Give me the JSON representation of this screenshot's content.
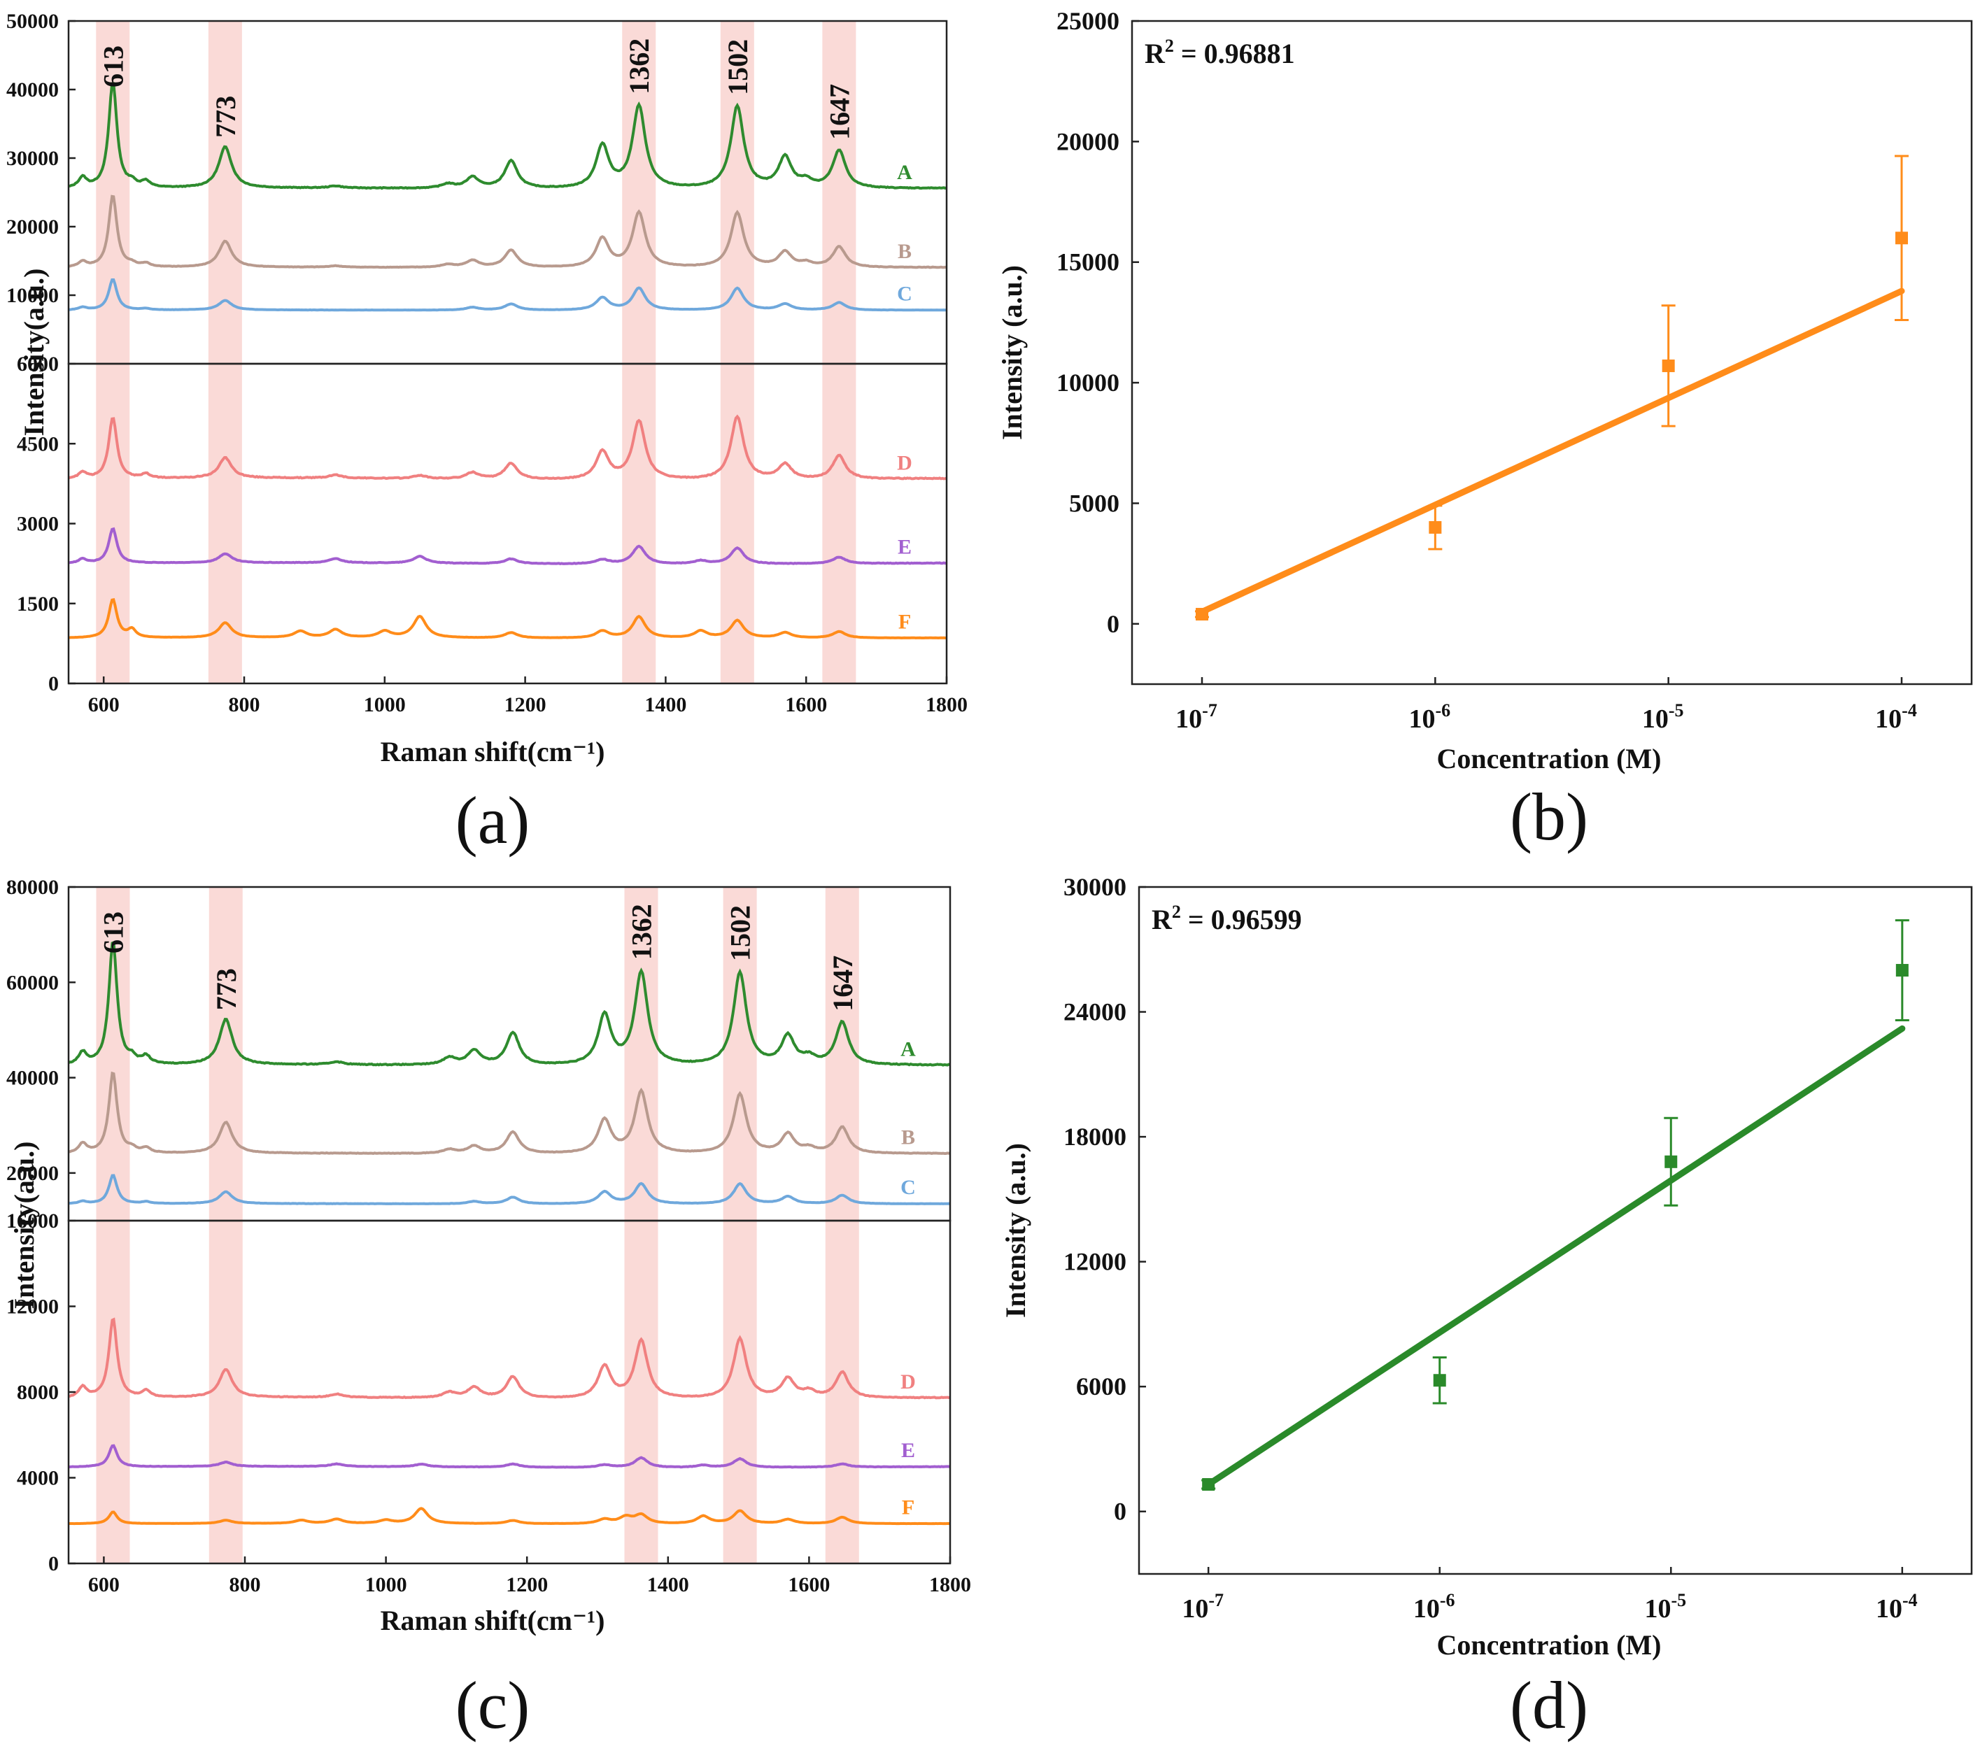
{
  "colors": {
    "A": "#2e8b2e",
    "B": "#b89a8e",
    "C": "#6fa8dc",
    "D": "#f08080",
    "E": "#a25fd0",
    "F": "#ff8c1a",
    "band": "#f9d4d0",
    "fit_b": "#ff8c1a",
    "fit_d": "#2a8a2a"
  },
  "chart_data": [
    {
      "panel": "(a)",
      "type": "line",
      "xlabel": "Raman shift(cm⁻¹)",
      "ylabel": "Intensity(a.u.)",
      "xlim": [
        550,
        1800
      ],
      "xticks": [
        600,
        800,
        1000,
        1200,
        1400,
        1600,
        1800
      ],
      "upper": {
        "ylim": [
          0,
          50000
        ],
        "yticks": [
          10000,
          20000,
          30000,
          40000,
          50000
        ]
      },
      "lower": {
        "ylim": [
          0,
          6000
        ],
        "yticks": [
          0,
          1500,
          3000,
          4500,
          6000
        ]
      },
      "bands": [
        613,
        773,
        1362,
        1502,
        1647
      ],
      "band_labels": [
        "613",
        "773",
        "1362",
        "1502",
        "1647"
      ],
      "series": [
        {
          "name": "A",
          "pane": "upper",
          "base": 25500,
          "peaks": [
            [
              570,
              1500
            ],
            [
              613,
              15500
            ],
            [
              640,
              700
            ],
            [
              660,
              900
            ],
            [
              773,
              6000
            ],
            [
              930,
              300
            ],
            [
              1090,
              600
            ],
            [
              1125,
              1600
            ],
            [
              1180,
              4000
            ],
            [
              1310,
              6200
            ],
            [
              1362,
              12000
            ],
            [
              1502,
              12000
            ],
            [
              1570,
              4500
            ],
            [
              1600,
              1000
            ],
            [
              1647,
              5500
            ]
          ]
        },
        {
          "name": "B",
          "pane": "upper",
          "base": 14000,
          "peaks": [
            [
              570,
              800
            ],
            [
              613,
              10500
            ],
            [
              640,
              400
            ],
            [
              660,
              500
            ],
            [
              773,
              3800
            ],
            [
              930,
              200
            ],
            [
              1090,
              400
            ],
            [
              1125,
              1000
            ],
            [
              1180,
              2500
            ],
            [
              1310,
              4200
            ],
            [
              1362,
              8000
            ],
            [
              1502,
              8000
            ],
            [
              1570,
              2200
            ],
            [
              1600,
              600
            ],
            [
              1647,
              3000
            ]
          ]
        },
        {
          "name": "C",
          "pane": "upper",
          "base": 7800,
          "peaks": [
            [
              570,
              400
            ],
            [
              613,
              4500
            ],
            [
              660,
              200
            ],
            [
              773,
              1400
            ],
            [
              1125,
              400
            ],
            [
              1180,
              900
            ],
            [
              1310,
              1800
            ],
            [
              1362,
              3200
            ],
            [
              1502,
              3200
            ],
            [
              1570,
              900
            ],
            [
              1647,
              1100
            ]
          ]
        },
        {
          "name": "D",
          "pane": "lower",
          "base": 3830,
          "peaks": [
            [
              570,
              120
            ],
            [
              613,
              1150
            ],
            [
              660,
              80
            ],
            [
              773,
              380
            ],
            [
              930,
              60
            ],
            [
              1050,
              60
            ],
            [
              1125,
              120
            ],
            [
              1180,
              300
            ],
            [
              1310,
              520
            ],
            [
              1362,
              1100
            ],
            [
              1502,
              1180
            ],
            [
              1570,
              280
            ],
            [
              1647,
              440
            ]
          ]
        },
        {
          "name": "E",
          "pane": "lower",
          "base": 2250,
          "peaks": [
            [
              570,
              80
            ],
            [
              613,
              650
            ],
            [
              773,
              170
            ],
            [
              930,
              80
            ],
            [
              1050,
              130
            ],
            [
              1180,
              90
            ],
            [
              1310,
              80
            ],
            [
              1362,
              330
            ],
            [
              1450,
              60
            ],
            [
              1502,
              300
            ],
            [
              1647,
              120
            ]
          ]
        },
        {
          "name": "F",
          "pane": "lower",
          "base": 850,
          "peaks": [
            [
              613,
              720
            ],
            [
              640,
              150
            ],
            [
              773,
              280
            ],
            [
              880,
              120
            ],
            [
              930,
              150
            ],
            [
              1000,
              120
            ],
            [
              1050,
              400
            ],
            [
              1180,
              100
            ],
            [
              1310,
              130
            ],
            [
              1362,
              400
            ],
            [
              1450,
              130
            ],
            [
              1502,
              330
            ],
            [
              1570,
              100
            ],
            [
              1647,
              120
            ]
          ]
        }
      ]
    },
    {
      "panel": "(b)",
      "type": "scatter",
      "xlabel": "Concentration (M)",
      "ylabel": "Intensity (a.u.)",
      "ylim": [
        -2500,
        25000
      ],
      "yticks": [
        0,
        5000,
        10000,
        15000,
        20000,
        25000
      ],
      "xlim_log": [
        -7.3,
        -3.7
      ],
      "xticks_exp": [
        -7,
        -6,
        -5,
        -4
      ],
      "xtick_base": "10",
      "r2_label": "R",
      "r2_sup": "2",
      "r2_value": "= 0.96881",
      "points": [
        {
          "x_exp": -7,
          "y": 400,
          "err": 120
        },
        {
          "x_exp": -6,
          "y": 4000,
          "err": 900
        },
        {
          "x_exp": -5,
          "y": 10700,
          "err": 2500
        },
        {
          "x_exp": -4,
          "y": 16000,
          "err": 3400
        }
      ],
      "fit": {
        "x_exp": [
          -7,
          -4
        ],
        "y": [
          500,
          13800
        ]
      }
    },
    {
      "panel": "(c)",
      "type": "line",
      "xlabel": "Raman shift(cm⁻¹)",
      "ylabel": "Intensity(a.u.)",
      "xlim": [
        550,
        1800
      ],
      "xticks": [
        600,
        800,
        1000,
        1200,
        1400,
        1600,
        1800
      ],
      "upper": {
        "ylim": [
          10000,
          80000
        ],
        "yticks": [
          20000,
          40000,
          60000,
          80000
        ]
      },
      "lower": {
        "ylim": [
          0,
          16000
        ],
        "yticks": [
          0,
          4000,
          8000,
          12000,
          16000
        ]
      },
      "bands": [
        613,
        773,
        1362,
        1502,
        1647
      ],
      "band_labels": [
        "613",
        "773",
        "1362",
        "1502",
        "1647"
      ],
      "series": [
        {
          "name": "A",
          "pane": "upper",
          "base": 42500,
          "peaks": [
            [
              570,
              2500
            ],
            [
              613,
              26000
            ],
            [
              640,
              1200
            ],
            [
              660,
              1600
            ],
            [
              773,
              9500
            ],
            [
              930,
              600
            ],
            [
              1090,
              1500
            ],
            [
              1125,
              3000
            ],
            [
              1180,
              6800
            ],
            [
              1310,
              10500
            ],
            [
              1362,
              19500
            ],
            [
              1502,
              19500
            ],
            [
              1570,
              6000
            ],
            [
              1600,
              1500
            ],
            [
              1647,
              9000
            ]
          ]
        },
        {
          "name": "B",
          "pane": "upper",
          "base": 24000,
          "peaks": [
            [
              570,
              2000
            ],
            [
              613,
              17000
            ],
            [
              640,
              800
            ],
            [
              660,
              1000
            ],
            [
              773,
              6500
            ],
            [
              1090,
              800
            ],
            [
              1125,
              1500
            ],
            [
              1180,
              4500
            ],
            [
              1310,
              7000
            ],
            [
              1362,
              13000
            ],
            [
              1502,
              12500
            ],
            [
              1570,
              4000
            ],
            [
              1600,
              1000
            ],
            [
              1647,
              5500
            ]
          ]
        },
        {
          "name": "C",
          "pane": "upper",
          "base": 13500,
          "peaks": [
            [
              570,
              500
            ],
            [
              613,
              6000
            ],
            [
              660,
              400
            ],
            [
              773,
              2500
            ],
            [
              1125,
              500
            ],
            [
              1180,
              1400
            ],
            [
              1310,
              2500
            ],
            [
              1362,
              4200
            ],
            [
              1502,
              4200
            ],
            [
              1570,
              1500
            ],
            [
              1647,
              1800
            ]
          ]
        },
        {
          "name": "D",
          "pane": "lower",
          "base": 7700,
          "peaks": [
            [
              570,
              500
            ],
            [
              613,
              3700
            ],
            [
              660,
              300
            ],
            [
              773,
              1300
            ],
            [
              930,
              150
            ],
            [
              1090,
              250
            ],
            [
              1125,
              500
            ],
            [
              1180,
              1000
            ],
            [
              1310,
              1500
            ],
            [
              1362,
              2700
            ],
            [
              1502,
              2800
            ],
            [
              1570,
              900
            ],
            [
              1600,
              300
            ],
            [
              1647,
              1200
            ]
          ]
        },
        {
          "name": "E",
          "pane": "lower",
          "base": 4500,
          "peaks": [
            [
              613,
              1000
            ],
            [
              773,
              200
            ],
            [
              930,
              120
            ],
            [
              1050,
              120
            ],
            [
              1180,
              150
            ],
            [
              1310,
              120
            ],
            [
              1362,
              450
            ],
            [
              1450,
              100
            ],
            [
              1502,
              400
            ],
            [
              1647,
              150
            ]
          ]
        },
        {
          "name": "F",
          "pane": "lower",
          "base": 1850,
          "peaks": [
            [
              613,
              550
            ],
            [
              773,
              150
            ],
            [
              880,
              150
            ],
            [
              930,
              200
            ],
            [
              1000,
              150
            ],
            [
              1050,
              700
            ],
            [
              1180,
              150
            ],
            [
              1310,
              200
            ],
            [
              1340,
              300
            ],
            [
              1362,
              400
            ],
            [
              1450,
              350
            ],
            [
              1502,
              600
            ],
            [
              1570,
              200
            ],
            [
              1647,
              300
            ]
          ]
        }
      ]
    },
    {
      "panel": "(d)",
      "type": "scatter",
      "xlabel": "Concentration (M)",
      "ylabel": "Intensity (a.u.)",
      "ylim": [
        -3000,
        30000
      ],
      "yticks": [
        0,
        6000,
        12000,
        18000,
        24000,
        30000
      ],
      "xlim_log": [
        -7.3,
        -3.7
      ],
      "xticks_exp": [
        -7,
        -6,
        -5,
        -4
      ],
      "xtick_base": "10",
      "r2_label": "R",
      "r2_sup": "2",
      "r2_value": "= 0.96599",
      "points": [
        {
          "x_exp": -7,
          "y": 1300,
          "err": 200
        },
        {
          "x_exp": -6,
          "y": 6300,
          "err": 1100
        },
        {
          "x_exp": -5,
          "y": 16800,
          "err": 2100
        },
        {
          "x_exp": -4,
          "y": 26000,
          "err": 2400
        }
      ],
      "fit": {
        "x_exp": [
          -7,
          -4
        ],
        "y": [
          1300,
          23200
        ]
      }
    }
  ]
}
